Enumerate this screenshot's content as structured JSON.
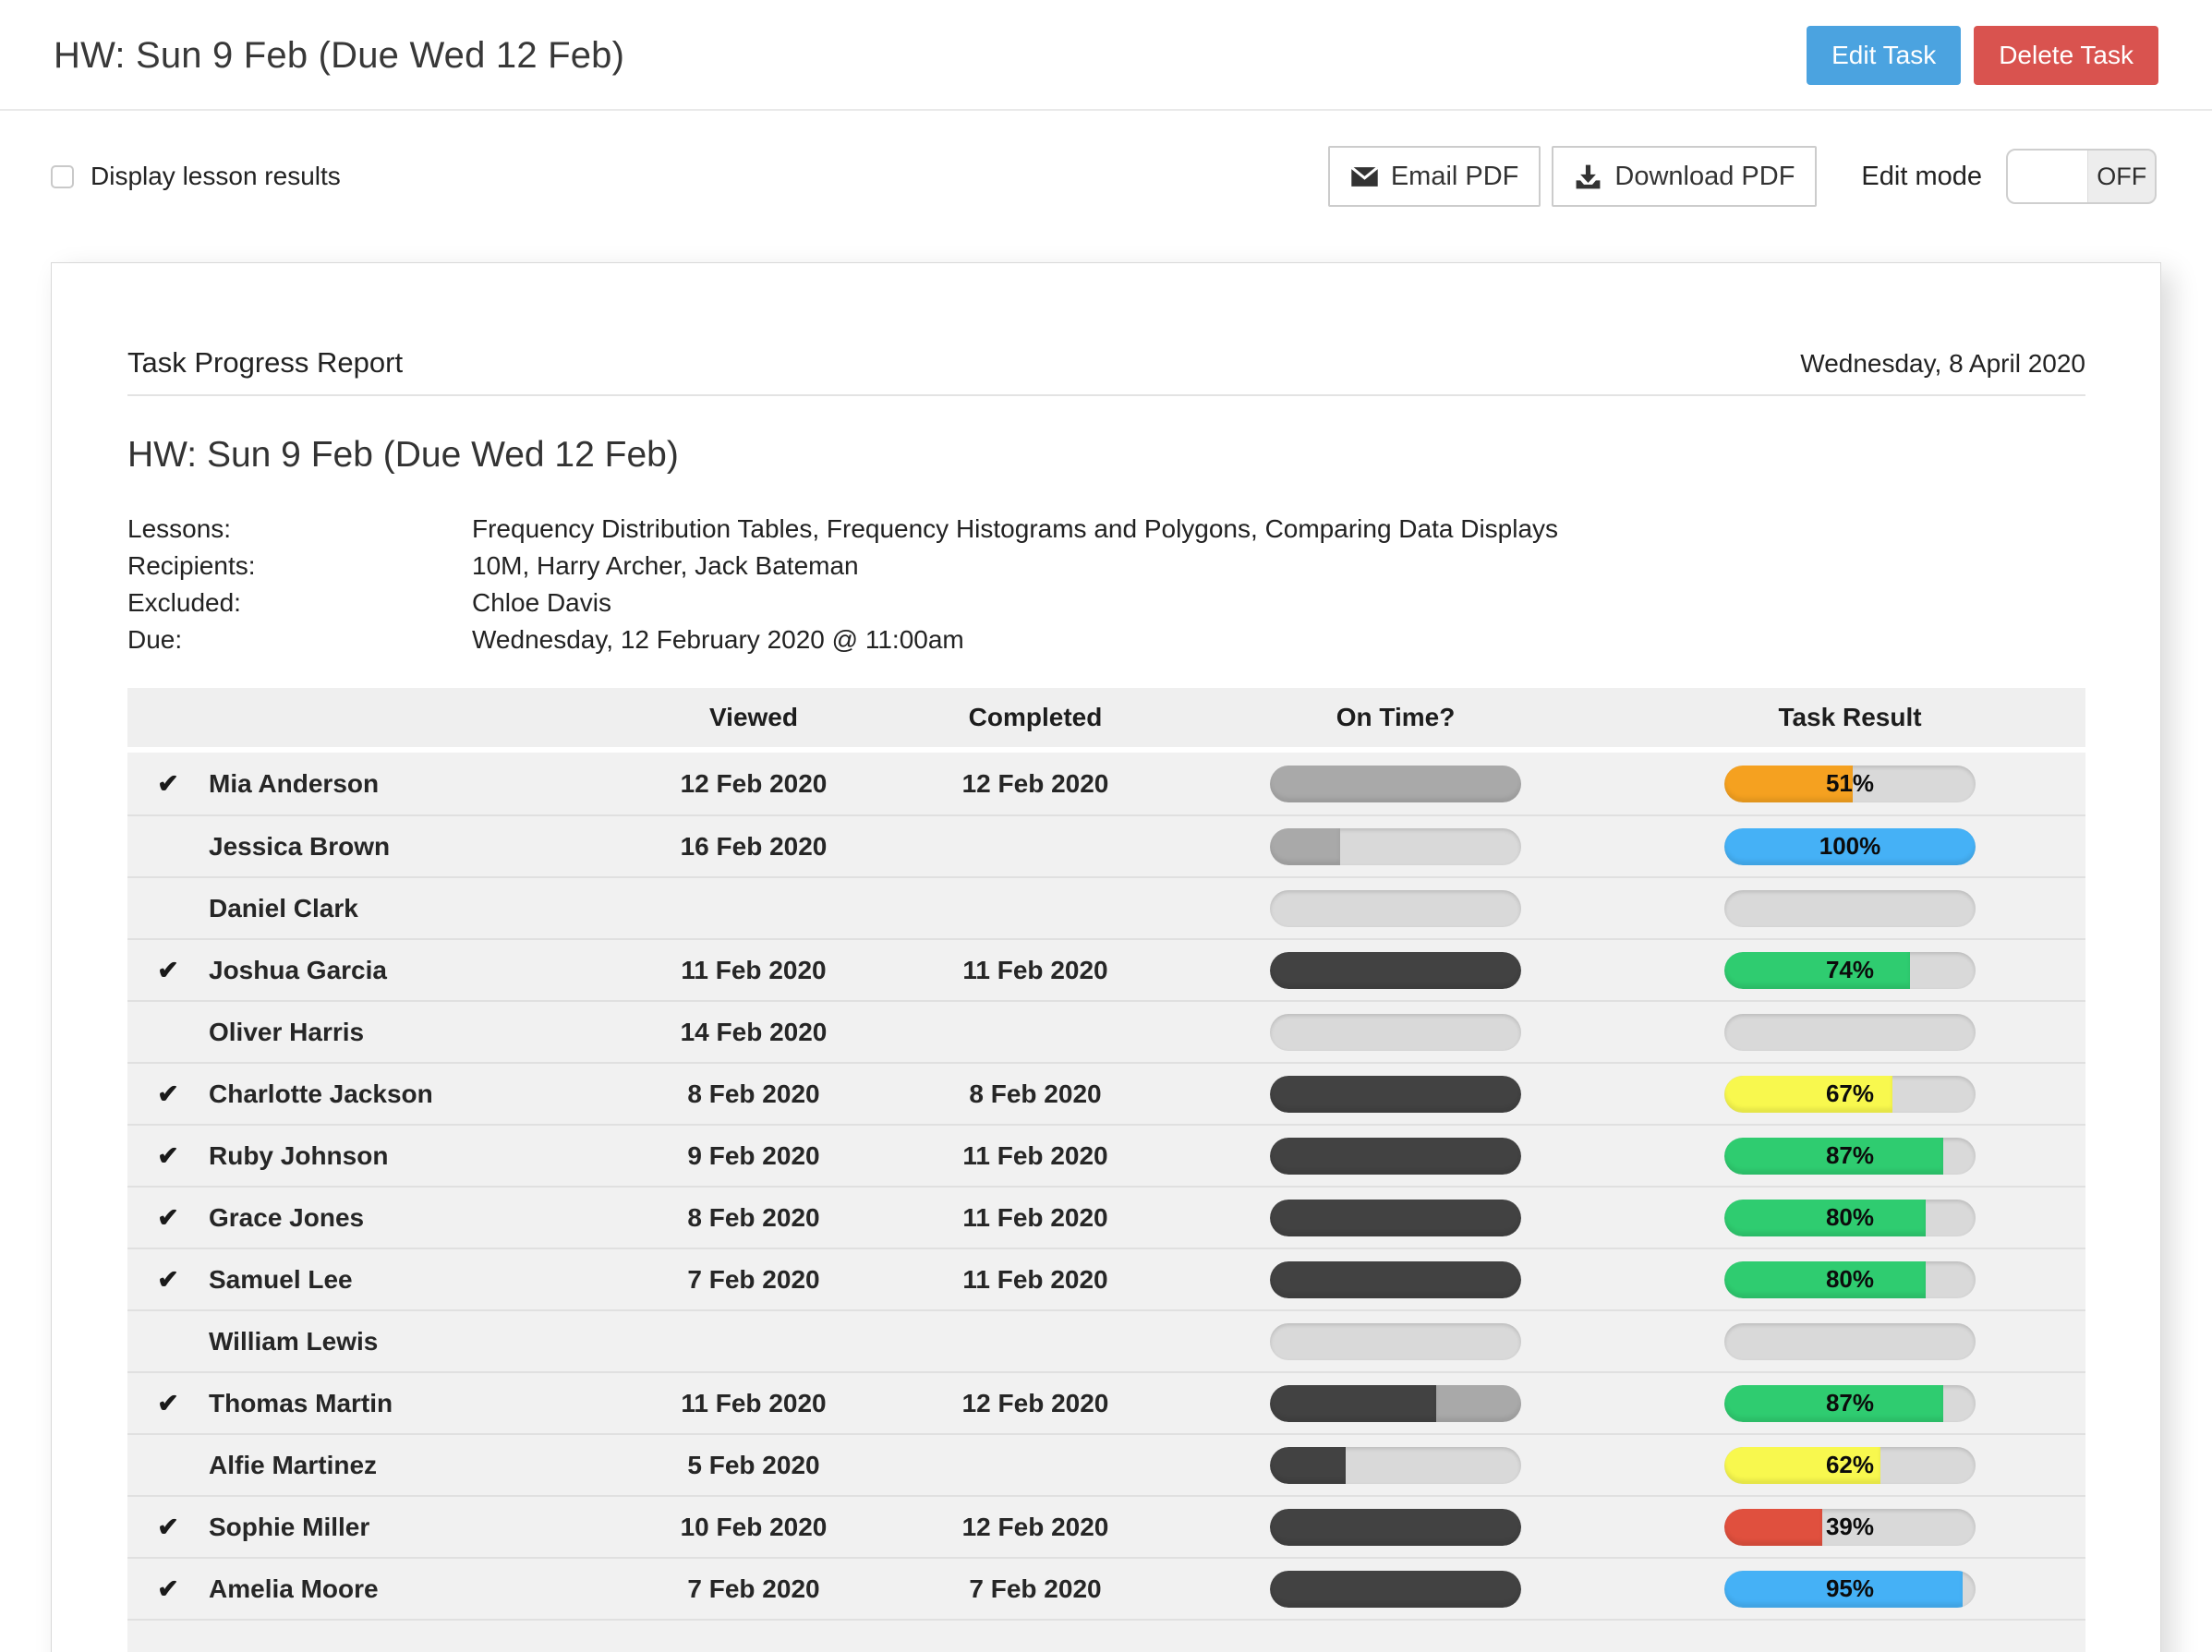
{
  "header": {
    "title": "HW: Sun 9 Feb (Due Wed 12 Feb)",
    "edit_task_label": "Edit Task",
    "delete_task_label": "Delete Task"
  },
  "toolbar": {
    "display_lesson_results_label": "Display lesson results",
    "email_pdf_label": "Email PDF",
    "download_pdf_label": "Download PDF",
    "edit_mode_label": "Edit mode",
    "edit_mode_state": "OFF"
  },
  "report": {
    "heading": "Task Progress Report",
    "date": "Wednesday, 8 April 2020",
    "task_title": "HW: Sun 9 Feb (Due Wed 12 Feb)",
    "meta": [
      {
        "label": "Lessons:",
        "value": "Frequency Distribution Tables, Frequency Histograms and Polygons, Comparing Data Displays"
      },
      {
        "label": "Recipients:",
        "value": "10M, Harry Archer, Jack Bateman"
      },
      {
        "label": "Excluded:",
        "value": "Chloe Davis"
      },
      {
        "label": "Due:",
        "value": "Wednesday, 12 February 2020 @ 11:00am"
      }
    ]
  },
  "colors": {
    "accent_blue_button": "#4ba3e0",
    "danger_red_button": "#d9534f",
    "bar_track": "#d9d9d9",
    "dark": "#424242",
    "medium": "#a9a9a9",
    "orange": "#f5a120",
    "blue": "#45b1f6",
    "green": "#2fcc70",
    "yellow": "#f8f84e",
    "red": "#e0503e"
  },
  "table": {
    "check_icon": "✔",
    "headers": {
      "viewed": "Viewed",
      "completed": "Completed",
      "on_time": "On Time?",
      "task_result": "Task Result"
    },
    "rows": [
      {
        "checked": true,
        "name": "Mia Anderson",
        "viewed": "12 Feb 2020",
        "completed": "12 Feb 2020",
        "on_time": [
          {
            "color": "medium",
            "percent": 100
          }
        ],
        "result": {
          "percent": 51,
          "label": "51%",
          "color": "orange"
        }
      },
      {
        "checked": false,
        "name": "Jessica Brown",
        "viewed": "16 Feb 2020",
        "completed": "",
        "on_time": [
          {
            "color": "medium",
            "percent": 28
          }
        ],
        "result": {
          "percent": 100,
          "label": "100%",
          "color": "blue"
        }
      },
      {
        "checked": false,
        "name": "Daniel Clark",
        "viewed": "",
        "completed": "",
        "on_time": [],
        "result": null
      },
      {
        "checked": true,
        "name": "Joshua Garcia",
        "viewed": "11 Feb 2020",
        "completed": "11 Feb 2020",
        "on_time": [
          {
            "color": "dark",
            "percent": 100
          }
        ],
        "result": {
          "percent": 74,
          "label": "74%",
          "color": "green"
        }
      },
      {
        "checked": false,
        "name": "Oliver Harris",
        "viewed": "14 Feb 2020",
        "completed": "",
        "on_time": [],
        "result": null
      },
      {
        "checked": true,
        "name": "Charlotte Jackson",
        "viewed": "8 Feb 2020",
        "completed": "8 Feb 2020",
        "on_time": [
          {
            "color": "dark",
            "percent": 100
          }
        ],
        "result": {
          "percent": 67,
          "label": "67%",
          "color": "yellow"
        }
      },
      {
        "checked": true,
        "name": "Ruby Johnson",
        "viewed": "9 Feb 2020",
        "completed": "11 Feb 2020",
        "on_time": [
          {
            "color": "dark",
            "percent": 100
          }
        ],
        "result": {
          "percent": 87,
          "label": "87%",
          "color": "green"
        }
      },
      {
        "checked": true,
        "name": "Grace Jones",
        "viewed": "8 Feb 2020",
        "completed": "11 Feb 2020",
        "on_time": [
          {
            "color": "dark",
            "percent": 100
          }
        ],
        "result": {
          "percent": 80,
          "label": "80%",
          "color": "green"
        }
      },
      {
        "checked": true,
        "name": "Samuel Lee",
        "viewed": "7 Feb 2020",
        "completed": "11 Feb 2020",
        "on_time": [
          {
            "color": "dark",
            "percent": 100
          }
        ],
        "result": {
          "percent": 80,
          "label": "80%",
          "color": "green"
        }
      },
      {
        "checked": false,
        "name": "William Lewis",
        "viewed": "",
        "completed": "",
        "on_time": [],
        "result": null
      },
      {
        "checked": true,
        "name": "Thomas Martin",
        "viewed": "11 Feb 2020",
        "completed": "12 Feb 2020",
        "on_time": [
          {
            "color": "dark",
            "percent": 66
          },
          {
            "color": "medium",
            "percent": 34
          }
        ],
        "result": {
          "percent": 87,
          "label": "87%",
          "color": "green"
        }
      },
      {
        "checked": false,
        "name": "Alfie Martinez",
        "viewed": "5 Feb 2020",
        "completed": "",
        "on_time": [
          {
            "color": "dark",
            "percent": 30
          }
        ],
        "result": {
          "percent": 62,
          "label": "62%",
          "color": "yellow"
        }
      },
      {
        "checked": true,
        "name": "Sophie Miller",
        "viewed": "10 Feb 2020",
        "completed": "12 Feb 2020",
        "on_time": [
          {
            "color": "dark",
            "percent": 100
          }
        ],
        "result": {
          "percent": 39,
          "label": "39%",
          "color": "red"
        }
      },
      {
        "checked": true,
        "name": "Amelia Moore",
        "viewed": "7 Feb 2020",
        "completed": "7 Feb 2020",
        "on_time": [
          {
            "color": "dark",
            "percent": 100
          }
        ],
        "result": {
          "percent": 95,
          "label": "95%",
          "color": "blue"
        }
      }
    ]
  }
}
